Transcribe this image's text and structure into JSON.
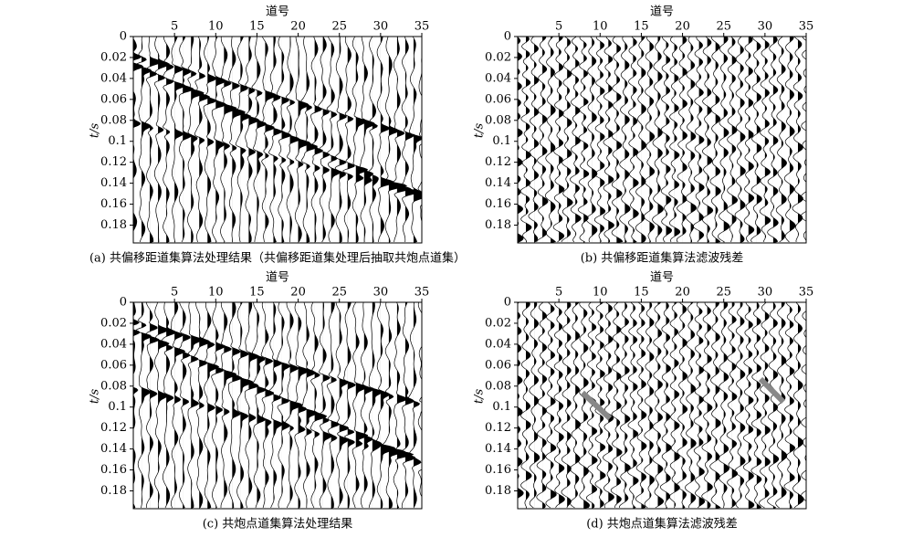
{
  "panels": [
    {
      "caption": "(a) 共偏移距道集算法处理结果（共偏移距道集处理后抽取共炮点道集）",
      "x_label": "道号",
      "y_label": "t/s",
      "xlim": [
        0,
        35
      ],
      "xticks": [
        5,
        10,
        15,
        20,
        25,
        30,
        35
      ],
      "ylim": [
        0,
        0.197
      ],
      "yticks": [
        0,
        0.02,
        0.04,
        0.06,
        0.08,
        0.1,
        0.12,
        0.14,
        0.16,
        0.18
      ]
    },
    {
      "caption": "(b) 共偏移距道集算法滤波残差",
      "x_label": "道号",
      "y_label": "t/s",
      "xlim": [
        0,
        35
      ],
      "xticks": [
        5,
        10,
        15,
        20,
        25,
        30,
        35
      ],
      "ylim": [
        0,
        0.197
      ],
      "yticks": [
        0,
        0.02,
        0.04,
        0.06,
        0.08,
        0.1,
        0.12,
        0.14,
        0.16,
        0.18
      ]
    },
    {
      "caption": "(c) 共炮点道集算法处理结果",
      "x_label": "道号",
      "y_label": "t/s",
      "xlim": [
        0,
        35
      ],
      "xticks": [
        5,
        10,
        15,
        20,
        25,
        30,
        35
      ],
      "ylim": [
        0,
        0.197
      ],
      "yticks": [
        0,
        0.02,
        0.04,
        0.06,
        0.08,
        0.1,
        0.12,
        0.14,
        0.16,
        0.18
      ]
    },
    {
      "caption": "(d) 共炮点道集算法滤波残差",
      "x_label": "道号",
      "y_label": "t/s",
      "xlim": [
        0,
        35
      ],
      "xticks": [
        5,
        10,
        15,
        20,
        25,
        30,
        35
      ],
      "ylim": [
        0,
        0.197
      ],
      "yticks": [
        0,
        0.02,
        0.04,
        0.06,
        0.08,
        0.1,
        0.12,
        0.14,
        0.16,
        0.18
      ]
    }
  ]
}
